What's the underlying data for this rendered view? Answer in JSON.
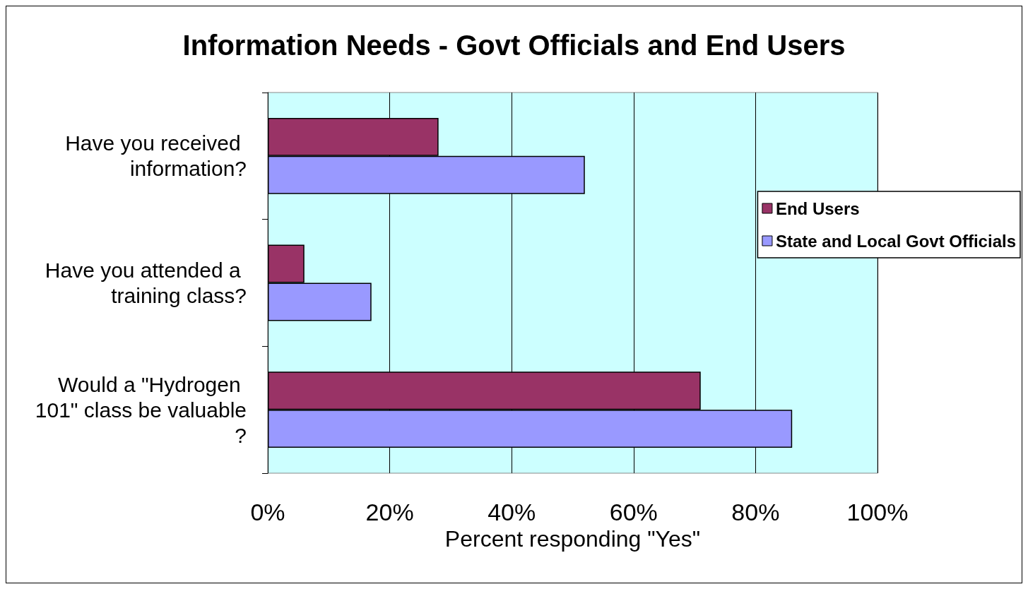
{
  "chart_data": {
    "type": "bar",
    "orientation": "horizontal",
    "title": "Information Needs - Govt Officials and End Users",
    "xlabel": "Percent responding \"Yes\"",
    "categories": [
      "Have you received information?",
      "Have you attended a training class?",
      "Would a \"Hydrogen 101\" class be valuable?"
    ],
    "series": [
      {
        "name": "End Users",
        "color": "#993366",
        "values": [
          28,
          6,
          71
        ]
      },
      {
        "name": "State and Local Govt Officials",
        "color": "#9999ff",
        "values": [
          52,
          17,
          86
        ]
      }
    ],
    "xlim": [
      0,
      100
    ],
    "xticks": [
      {
        "value": 0,
        "label": "0%"
      },
      {
        "value": 20,
        "label": "20%"
      },
      {
        "value": 40,
        "label": "40%"
      },
      {
        "value": 60,
        "label": "60%"
      },
      {
        "value": 80,
        "label": "80%"
      },
      {
        "value": 100,
        "label": "100%"
      }
    ],
    "grid": "x",
    "legend": "right"
  }
}
